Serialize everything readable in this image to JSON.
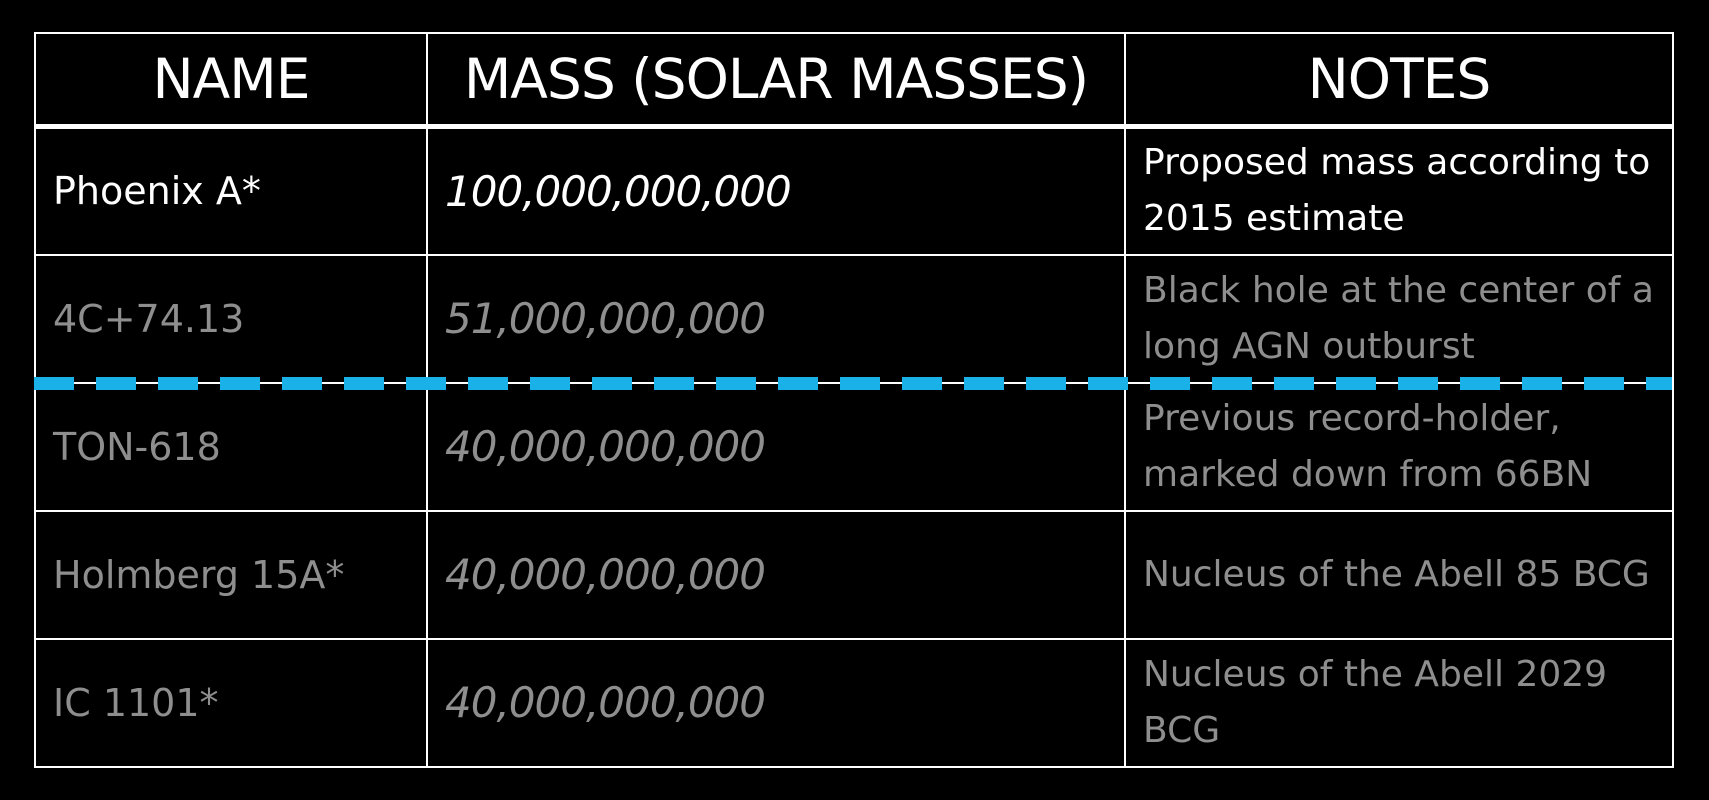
{
  "table": {
    "headers": [
      "NAME",
      "MASS (SOLAR MASSES)",
      "NOTES"
    ],
    "rows": [
      {
        "name": "Phoenix A*",
        "mass": "100,000,000,000",
        "notes": "Proposed mass according to 2015 estimate"
      },
      {
        "name": "4C+74.13",
        "mass": "51,000,000,000",
        "notes": "Black hole at the center of a long AGN outburst"
      },
      {
        "name": "TON-618",
        "mass": "40,000,000,000",
        "notes": "Previous record-holder, marked down from 66BN"
      },
      {
        "name": "Holmberg 15A*",
        "mass": "40,000,000,000",
        "notes": "Nucleus of the Abell 85 BCG"
      },
      {
        "name": "IC 1101*",
        "mass": "40,000,000,000",
        "notes": "Nucleus of the Abell 2029 BCG"
      }
    ]
  },
  "colors": {
    "background": "#000000",
    "highlight_text": "#ffffff",
    "muted_text": "#8e8e8e",
    "divider": "#1ab0e8",
    "grid": "#ffffff"
  }
}
